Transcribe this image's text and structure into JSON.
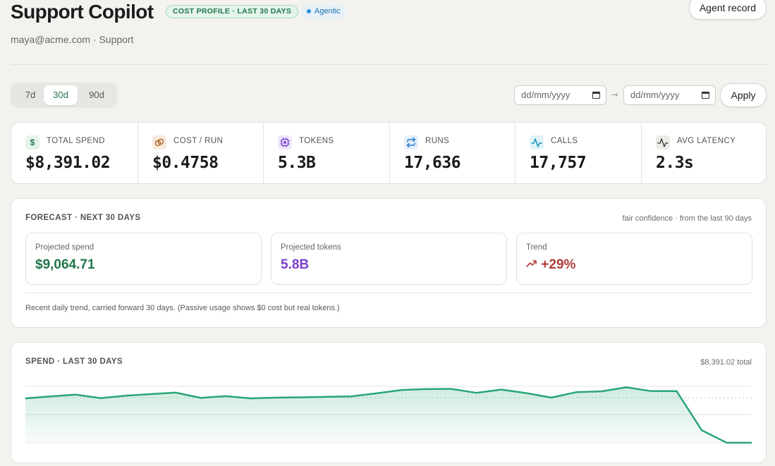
{
  "header": {
    "title": "Support Copilot",
    "cost_badge": "COST PROFILE · LAST 30 DAYS",
    "agentic_badge": "Agentic",
    "subtitle": "maya@acme.com · Support",
    "agent_record_label": "Agent record"
  },
  "range": {
    "options": [
      "7d",
      "30d",
      "90d"
    ],
    "selected": "30d"
  },
  "date_range": {
    "start_placeholder": "dd/mm/yyyy",
    "end_placeholder": "dd/mm/yyyy",
    "separator": "→",
    "apply_label": "Apply"
  },
  "stats": [
    {
      "label": "TOTAL SPEND",
      "value": "$8,391.02",
      "icon": "dollar-icon",
      "icon_color": "#21754b",
      "icon_bg": "#e4f4ea"
    },
    {
      "label": "COST / RUN",
      "value": "$0.4758",
      "icon": "link-icon",
      "icon_color": "#b4692a",
      "icon_bg": "#f6e9dc"
    },
    {
      "label": "TOKENS",
      "value": "5.3B",
      "icon": "chip-icon",
      "icon_color": "#7b3fd1",
      "icon_bg": "#efe6fb"
    },
    {
      "label": "RUNS",
      "value": "17,636",
      "icon": "repeat-icon",
      "icon_color": "#2a7bd0",
      "icon_bg": "#e3eefa"
    },
    {
      "label": "CALLS",
      "value": "17,757",
      "icon": "activity-icon",
      "icon_color": "#1a96b8",
      "icon_bg": "#e0f3f8"
    },
    {
      "label": "AVG LATENCY",
      "value": "2.3s",
      "icon": "pulse-icon",
      "icon_color": "#333333",
      "icon_bg": "#ecebe8"
    }
  ],
  "forecast": {
    "title": "FORECAST · NEXT 30 DAYS",
    "confidence": "fair confidence · from the last 90 days",
    "projected_spend_label": "Projected spend",
    "projected_spend": "$9,064.71",
    "projected_tokens_label": "Projected tokens",
    "projected_tokens": "5.8B",
    "trend_label": "Trend",
    "trend": "+29%",
    "note": "Recent daily trend, carried forward 30 days. (Passive usage shows $0 cost but real tokens.)",
    "colors": {
      "spend": "#21754b",
      "tokens": "#7b3fd1",
      "trend": "#b03a3a"
    }
  },
  "spend_chart": {
    "title": "SPEND · LAST 30 DAYS",
    "total": "$8,391.02 total"
  },
  "chart_data": {
    "type": "area",
    "title": "SPEND · LAST 30 DAYS",
    "xlabel": "",
    "ylabel": "",
    "x": [
      1,
      2,
      3,
      4,
      5,
      6,
      7,
      8,
      9,
      10,
      11,
      12,
      13,
      14,
      15,
      16,
      17,
      18,
      19,
      20,
      21,
      22,
      23,
      24,
      25,
      26,
      27,
      28,
      29,
      30
    ],
    "values": [
      0.77,
      0.85,
      0.92,
      0.78,
      0.88,
      0.94,
      1.0,
      0.79,
      0.86,
      0.77,
      0.8,
      0.81,
      0.83,
      0.85,
      0.97,
      1.1,
      1.14,
      1.15,
      0.99,
      1.12,
      0.98,
      0.8,
      1.02,
      1.05,
      1.21,
      1.06,
      1.06,
      -0.5,
      -1.0,
      -1.0
    ],
    "ylim": [
      -1,
      1.25
    ],
    "reference_line": 0.8,
    "grid": true,
    "color": "#2aa676"
  }
}
